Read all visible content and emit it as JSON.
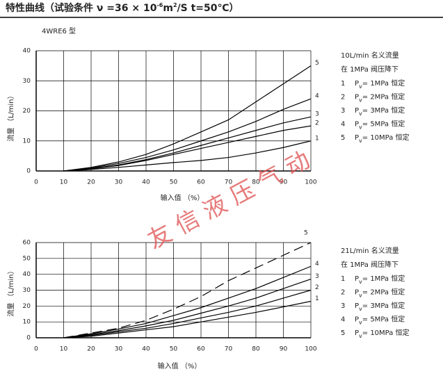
{
  "header": {
    "title": "特性曲线",
    "cond": "（试验条件 ν =36 × 10",
    "cond_exp": "-6",
    "cond_unit": "m",
    "cond_unit_exp": "2",
    "cond_tail": "/S  t=50℃）"
  },
  "watermark": "友 信 液 压 气 动",
  "chart_data": [
    {
      "type": "line",
      "subtitle": "4WRE6 型",
      "xlabel": "输入值  （%）",
      "ylabel": "流量 （L/min）",
      "notes": [
        "10L/min 名义流量",
        "在 1MPa 阀压降下"
      ],
      "x": [
        10,
        20,
        30,
        40,
        50,
        60,
        70,
        80,
        90,
        100
      ],
      "xlim": [
        0,
        100
      ],
      "xticks": [
        0,
        10,
        20,
        30,
        40,
        50,
        60,
        70,
        80,
        90,
        100
      ],
      "ylim": [
        0,
        40
      ],
      "yticks": [
        0,
        10,
        20,
        30,
        40
      ],
      "grid": true,
      "series": [
        {
          "name": "1",
          "color": "#000",
          "sym": "P",
          "sub": "v",
          "desc": "=  1MPa 恒定",
          "values": [
            0,
            0.5,
            1.2,
            2,
            2.8,
            3.5,
            4.5,
            6,
            7.8,
            10
          ]
        },
        {
          "name": "2",
          "color": "#000",
          "sym": "P",
          "sub": "v",
          "desc": "=  2MPa 恒定",
          "values": [
            0,
            0.7,
            1.8,
            3.5,
            5.5,
            7.5,
            9.5,
            11.5,
            13.5,
            15
          ]
        },
        {
          "name": "3",
          "color": "#000",
          "sym": "P",
          "sub": "v",
          "desc": "=  3MPa 恒定",
          "values": [
            0,
            0.8,
            2,
            3.8,
            6,
            8.5,
            11,
            13.5,
            16,
            18
          ]
        },
        {
          "name": "4",
          "color": "#000",
          "sym": "P",
          "sub": "v",
          "desc": "=  5MPa 恒定",
          "values": [
            0,
            1,
            2.5,
            4.5,
            7,
            10,
            13,
            16.5,
            20.5,
            24
          ]
        },
        {
          "name": "5",
          "color": "#000",
          "sym": "P",
          "sub": "v",
          "desc": "=  10MPa 恒定",
          "values": [
            0,
            1.2,
            3,
            5.5,
            9,
            13,
            17,
            23,
            29,
            35
          ]
        }
      ]
    },
    {
      "type": "line",
      "xlabel": "输入值  （%）",
      "ylabel": "流量 （L/min）",
      "notes": [
        "21L/min 名义流量",
        "在 1MPa 阀压降下"
      ],
      "x": [
        10,
        20,
        30,
        40,
        50,
        60,
        70,
        80,
        90,
        100
      ],
      "xlim": [
        0,
        100
      ],
      "xticks": [
        0,
        10,
        20,
        30,
        40,
        50,
        60,
        70,
        80,
        90,
        100
      ],
      "ylim": [
        0,
        60
      ],
      "yticks": [
        0,
        10,
        20,
        30,
        40,
        50,
        60
      ],
      "grid": true,
      "series": [
        {
          "name": "1",
          "color": "#000",
          "sym": "P",
          "sub": "v",
          "desc": "=  1MPa 恒定",
          "values": [
            0,
            1,
            3,
            5,
            7,
            10,
            13,
            16,
            19.5,
            23
          ]
        },
        {
          "name": "2",
          "color": "#000",
          "sym": "P",
          "sub": "v",
          "desc": "=  2MPa 恒定",
          "values": [
            0,
            1.5,
            3.8,
            6,
            9,
            12.5,
            16,
            20,
            25,
            30
          ]
        },
        {
          "name": "3",
          "color": "#000",
          "sym": "P",
          "sub": "v",
          "desc": "=  3MPa 恒定",
          "values": [
            0,
            2,
            4.5,
            7.5,
            11,
            15.5,
            20,
            25,
            31,
            37
          ]
        },
        {
          "name": "4",
          "color": "#000",
          "sym": "P",
          "sub": "v",
          "desc": "=  5MPa 恒定",
          "values": [
            0,
            2.5,
            5.5,
            9,
            14,
            19,
            25,
            31,
            38,
            45
          ]
        },
        {
          "name": "5",
          "color": "#000",
          "dashed": true,
          "sym": "P",
          "sub": "v",
          "desc": "=  10MPa 恒定",
          "values": [
            0,
            3,
            6,
            11,
            18,
            26,
            36,
            44,
            52,
            60
          ]
        }
      ]
    }
  ]
}
